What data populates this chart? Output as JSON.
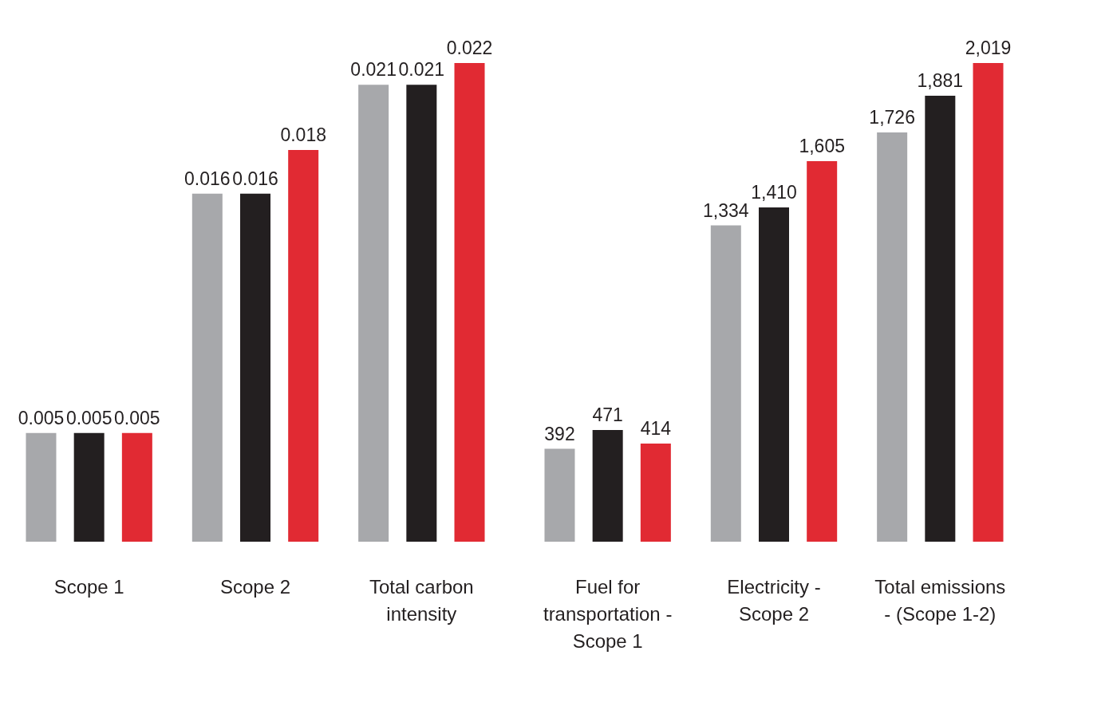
{
  "chart_data": [
    {
      "type": "bar",
      "categories": [
        "Scope 1",
        "Scope 2",
        "Total carbon intensity"
      ],
      "data_labels": true,
      "legend": false,
      "series": [
        {
          "color": "#a7a8ab",
          "values": [
            0.005,
            0.016,
            0.021
          ]
        },
        {
          "color": "#231f20",
          "values": [
            0.005,
            0.016,
            0.021
          ]
        },
        {
          "color": "#e12a33",
          "values": [
            0.005,
            0.018,
            0.022
          ]
        }
      ]
    },
    {
      "type": "bar",
      "categories": [
        "Fuel for transportation - Scope 1",
        "Electricity - Scope 2",
        "Total emissions - (Scope 1-2)"
      ],
      "legend": false,
      "series": [
        {
          "color": "#a7a8ab",
          "values": [
            392,
            1334,
            1726
          ],
          "value_labels": [
            "392",
            "1,334",
            "1,726"
          ]
        },
        {
          "color": "#231f20",
          "values": [
            471,
            1410,
            1881
          ],
          "value_labels": [
            "471",
            "1,410",
            "1,881"
          ]
        },
        {
          "color": "#e12a33",
          "values": [
            414,
            1605,
            2019
          ],
          "value_labels": [
            "414",
            "1,605",
            "2,019"
          ]
        }
      ]
    }
  ]
}
